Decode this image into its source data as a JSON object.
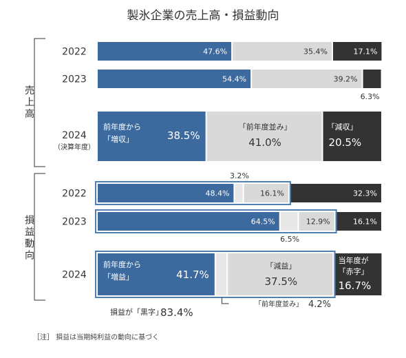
{
  "chart_data": {
    "type": "bar",
    "title": "製氷企業の売上高・損益動向",
    "groups": [
      {
        "name": "売上高",
        "rows": [
          {
            "year": "2022",
            "sublabel": "",
            "values": [
              47.6,
              35.4,
              17.1
            ]
          },
          {
            "year": "2023",
            "sublabel": "",
            "values": [
              54.4,
              39.2,
              6.3
            ]
          },
          {
            "year": "2024",
            "sublabel": "（決算年度）",
            "values": [
              38.5,
              41.0,
              20.5
            ],
            "segment_labels": [
              "前年度から「増収」",
              "「前年度並み」",
              "「減収」"
            ]
          }
        ]
      },
      {
        "name": "損益動向",
        "rows": [
          {
            "year": "2022",
            "sublabel": "",
            "values": [
              48.4,
              3.2,
              16.1,
              32.3
            ]
          },
          {
            "year": "2023",
            "sublabel": "",
            "values": [
              64.5,
              6.5,
              12.9,
              16.1
            ]
          },
          {
            "year": "2024",
            "sublabel": "",
            "values": [
              41.7,
              4.2,
              37.5,
              16.7
            ],
            "segment_labels": [
              "前年度から「増益」",
              "",
              "「減益」",
              "当年度が「赤字」"
            ]
          }
        ]
      }
    ],
    "annotations": {
      "black_label": "損益が「黒字」",
      "black_value": "83.4%",
      "flat_label": "「前年度並み」",
      "flat_value": "4.2%"
    },
    "colors": {
      "increase": "#3d6a9e",
      "flat": "#e8e8e8",
      "neutral": "#d9d9d9",
      "decrease": "#333333",
      "highlight_border": "#4f7fae"
    },
    "note": "［注］ 損益は当期純利益の動向に基づく"
  }
}
